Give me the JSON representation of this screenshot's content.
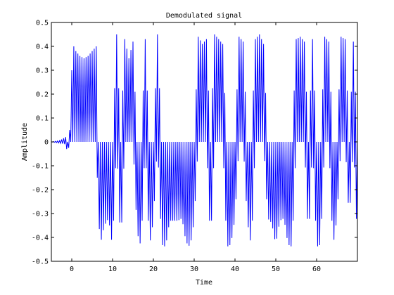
{
  "chart_data": {
    "type": "line",
    "title": "Demodulated signal",
    "xlabel": "Time",
    "ylabel": "Amplitude",
    "xlim": [
      -5,
      70
    ],
    "ylim": [
      -0.5,
      0.5
    ],
    "xticks": [
      0,
      10,
      20,
      30,
      40,
      50,
      60
    ],
    "yticks": [
      -0.5,
      -0.4,
      -0.3,
      -0.2,
      -0.1,
      0,
      0.1,
      0.2,
      0.3,
      0.4,
      0.5
    ],
    "ytick_labels": [
      "-0.5",
      "-0.4",
      "-0.3",
      "-0.2",
      "-0.1",
      "0",
      "0.1",
      "0.2",
      "0.3",
      "0.4",
      "0.5"
    ],
    "grid": false,
    "series": [
      {
        "color": "#0000ff",
        "x": [
          -5,
          -3,
          -1.5,
          -1,
          -0.5,
          0,
          0.5,
          1,
          2,
          3,
          4,
          5,
          6,
          6.5,
          7,
          8,
          9,
          10,
          11,
          12,
          13,
          14,
          15,
          16,
          17,
          18,
          19,
          20,
          21,
          22,
          23,
          24,
          25,
          26,
          27,
          28,
          29,
          30,
          31,
          32,
          33,
          34,
          35,
          36,
          37,
          38,
          39,
          40,
          41,
          42,
          43,
          44,
          45,
          46,
          47,
          48,
          49,
          50,
          51,
          52,
          53,
          54,
          55,
          56,
          57,
          58,
          59,
          60,
          61,
          62,
          63,
          64,
          65,
          66,
          67,
          68,
          69,
          70
        ],
        "upper": [
          0.0,
          0.005,
          0.02,
          0.0,
          0.05,
          0.3,
          0.4,
          0.38,
          0.36,
          0.35,
          0.36,
          0.38,
          0.4,
          0.0,
          0.0,
          0.0,
          0.0,
          0.0,
          0.45,
          0.0,
          0.43,
          0.35,
          0.42,
          0.0,
          0.0,
          0.43,
          0.0,
          0.0,
          0.45,
          0.0,
          0.0,
          0.0,
          0.0,
          0.0,
          0.0,
          0.0,
          0.0,
          0.0,
          0.44,
          0.41,
          0.43,
          0.0,
          0.45,
          0.43,
          0.41,
          0.0,
          0.0,
          0.0,
          0.44,
          0.42,
          0.0,
          0.0,
          0.43,
          0.45,
          0.41,
          0.0,
          0.0,
          0.0,
          0.0,
          0.0,
          0.0,
          0.0,
          0.43,
          0.44,
          0.42,
          0.0,
          0.43,
          0.0,
          0.0,
          0.44,
          0.42,
          0.0,
          0.0,
          0.44,
          0.43,
          0.0,
          0.42,
          0.0
        ],
        "lower": [
          0.0,
          -0.005,
          -0.01,
          -0.05,
          0.0,
          0.0,
          0.0,
          0.0,
          0.0,
          0.0,
          0.0,
          0.0,
          0.0,
          -0.3,
          -0.43,
          -0.35,
          -0.32,
          -0.44,
          0.0,
          -0.45,
          0.0,
          0.0,
          0.0,
          -0.38,
          -0.44,
          0.0,
          -0.44,
          -0.33,
          0.0,
          -0.43,
          -0.44,
          -0.33,
          -0.33,
          -0.33,
          -0.32,
          -0.42,
          -0.44,
          -0.33,
          0.0,
          0.0,
          0.0,
          -0.44,
          0.0,
          0.0,
          0.0,
          -0.44,
          -0.43,
          -0.32,
          0.0,
          0.0,
          -0.33,
          -0.44,
          0.0,
          0.0,
          0.0,
          -0.32,
          -0.34,
          -0.43,
          -0.33,
          -0.32,
          -0.43,
          -0.44,
          0.0,
          0.0,
          0.0,
          -0.43,
          0.0,
          -0.44,
          -0.43,
          0.0,
          0.0,
          -0.44,
          -0.32,
          0.0,
          0.0,
          -0.34,
          0.0,
          -0.43
        ]
      }
    ]
  }
}
